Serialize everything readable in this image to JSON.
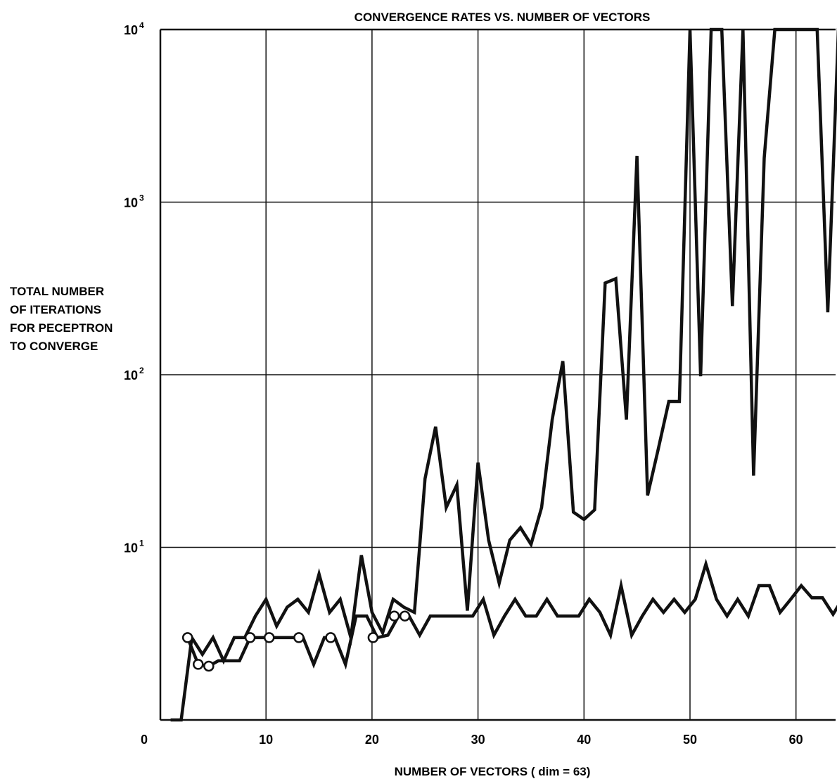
{
  "chart_data": {
    "type": "line",
    "title": "CONVERGENCE RATES VS. NUMBER OF VECTORS",
    "xlabel": "NUMBER OF VECTORS ( dim = 63)",
    "ylabel_lines": [
      "TOTAL NUMBER",
      "OF ITERATIONS",
      "FOR PECEPTRON",
      "TO CONVERGE"
    ],
    "x_scale": "linear",
    "y_scale": "log",
    "xlim": [
      0,
      63.5
    ],
    "ylim": [
      1,
      10000
    ],
    "x_ticks": [
      10,
      20,
      30,
      40,
      50,
      60
    ],
    "y_ticks": [
      {
        "value": 10,
        "base": "10",
        "exp": "1"
      },
      {
        "value": 100,
        "base": "10",
        "exp": "2"
      },
      {
        "value": 1000,
        "base": "10",
        "exp": "3"
      },
      {
        "value": 10000,
        "base": "10",
        "exp": "4"
      }
    ],
    "y_bottom_label": "0",
    "grid": true,
    "line_color": "#111111",
    "series": [
      {
        "points": [
          [
            1,
            1
          ],
          [
            2,
            1
          ],
          [
            3,
            3
          ],
          [
            4,
            2.4
          ],
          [
            5,
            3
          ],
          [
            6,
            2.2
          ],
          [
            7,
            3
          ],
          [
            8,
            3
          ],
          [
            9,
            4
          ],
          [
            10,
            5
          ],
          [
            11,
            3.5
          ],
          [
            12,
            4.5
          ],
          [
            13,
            5
          ],
          [
            14,
            4.2
          ],
          [
            15,
            7
          ],
          [
            16,
            4.2
          ],
          [
            17,
            5
          ],
          [
            18,
            3
          ],
          [
            19,
            9
          ],
          [
            20,
            4.2
          ],
          [
            21,
            3.2
          ],
          [
            22,
            5
          ],
          [
            23,
            4.5
          ],
          [
            24,
            4.2
          ],
          [
            25,
            25
          ],
          [
            26,
            50
          ],
          [
            27,
            17
          ],
          [
            28,
            23
          ],
          [
            29,
            4.3
          ],
          [
            30,
            31
          ],
          [
            31,
            11
          ],
          [
            32,
            6.2
          ],
          [
            33,
            11
          ],
          [
            34,
            13
          ],
          [
            35,
            10.4
          ],
          [
            36,
            17
          ],
          [
            37,
            55
          ],
          [
            38,
            120
          ],
          [
            39,
            16
          ],
          [
            40,
            14.5
          ],
          [
            41,
            16.5
          ],
          [
            42,
            340
          ],
          [
            43,
            360
          ],
          [
            44,
            55
          ],
          [
            45,
            1850
          ],
          [
            46,
            20
          ],
          [
            47,
            37
          ],
          [
            48,
            70
          ],
          [
            49,
            70
          ],
          [
            50,
            10000
          ],
          [
            51,
            98
          ],
          [
            52,
            10000
          ],
          [
            53,
            10000
          ],
          [
            54,
            250
          ],
          [
            55,
            10000
          ],
          [
            56,
            26
          ],
          [
            57,
            1800
          ],
          [
            58,
            10000
          ],
          [
            59,
            10000
          ],
          [
            60,
            10000
          ],
          [
            61,
            10000
          ],
          [
            62,
            10000
          ],
          [
            63,
            230
          ],
          [
            64,
            10000
          ],
          [
            64.3,
            10000
          ]
        ]
      },
      {
        "points": [
          [
            2.6,
            3
          ],
          [
            3.6,
            2.1
          ],
          [
            4.6,
            2.05
          ],
          [
            5.5,
            2.2
          ],
          [
            6.5,
            2.2
          ],
          [
            7.5,
            2.2
          ],
          [
            8.5,
            3
          ],
          [
            9.5,
            3
          ],
          [
            10.5,
            3
          ],
          [
            11.5,
            3
          ],
          [
            12.5,
            3
          ],
          [
            13.5,
            3
          ],
          [
            14.5,
            2.1
          ],
          [
            15.5,
            3
          ],
          [
            16.5,
            3
          ],
          [
            17.5,
            2.1
          ],
          [
            18.5,
            4
          ],
          [
            19.5,
            4
          ],
          [
            20.5,
            3
          ],
          [
            21.5,
            3.1
          ],
          [
            22.5,
            4
          ],
          [
            23.5,
            4
          ],
          [
            24.5,
            3.1
          ],
          [
            25.5,
            4
          ],
          [
            26.5,
            4
          ],
          [
            27.5,
            4
          ],
          [
            28.5,
            4
          ],
          [
            29.5,
            4
          ],
          [
            30.5,
            5
          ],
          [
            31.5,
            3.1
          ],
          [
            32.5,
            4
          ],
          [
            33.5,
            5
          ],
          [
            34.5,
            4
          ],
          [
            35.5,
            4
          ],
          [
            36.5,
            5
          ],
          [
            37.5,
            4
          ],
          [
            38.5,
            4
          ],
          [
            39.5,
            4
          ],
          [
            40.5,
            5
          ],
          [
            41.5,
            4.2
          ],
          [
            42.5,
            3.1
          ],
          [
            43.5,
            6
          ],
          [
            44.5,
            3.1
          ],
          [
            45.5,
            4
          ],
          [
            46.5,
            5
          ],
          [
            47.5,
            4.2
          ],
          [
            48.5,
            5
          ],
          [
            49.5,
            4.2
          ],
          [
            50.5,
            5
          ],
          [
            51.5,
            8
          ],
          [
            52.5,
            5
          ],
          [
            53.5,
            4
          ],
          [
            54.5,
            5
          ],
          [
            55.5,
            4
          ],
          [
            56.5,
            6
          ],
          [
            57.5,
            6
          ],
          [
            58.5,
            4.2
          ],
          [
            59.5,
            5
          ],
          [
            60.5,
            6
          ],
          [
            61.5,
            5.1
          ],
          [
            62.5,
            5.1
          ],
          [
            63.5,
            4.1
          ],
          [
            64,
            4.6
          ]
        ],
        "circle_markers": [
          [
            2.6,
            3
          ],
          [
            3.6,
            2.1
          ],
          [
            4.6,
            2.05
          ],
          [
            8.5,
            3
          ],
          [
            10.3,
            3
          ],
          [
            13.1,
            3
          ],
          [
            16.1,
            3
          ],
          [
            20.1,
            3
          ],
          [
            22.1,
            4
          ],
          [
            23.1,
            4
          ]
        ]
      }
    ]
  }
}
